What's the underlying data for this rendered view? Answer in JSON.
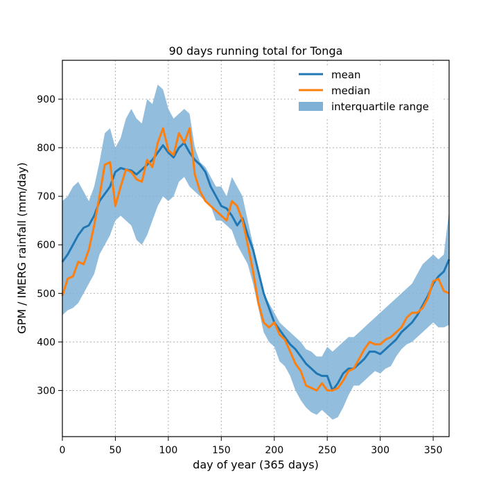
{
  "chart_data": {
    "type": "line",
    "title": "90 days running total for Tonga",
    "xlabel": "day of year (365 days)",
    "ylabel": "GPM / IMERG rainfall (mm/day)",
    "xlim": [
      0,
      365
    ],
    "ylim": [
      205,
      980
    ],
    "xticks": [
      0,
      50,
      100,
      150,
      200,
      250,
      300,
      350
    ],
    "yticks": [
      300,
      400,
      500,
      600,
      700,
      800,
      900
    ],
    "grid": true,
    "legend_position": "top-right",
    "colors": {
      "mean": "#1f77b4",
      "median": "#ff7f0e",
      "iqr": "#7fb1d6"
    },
    "series": [
      {
        "name": "mean",
        "x": [
          0,
          5,
          10,
          15,
          20,
          25,
          30,
          35,
          40,
          45,
          50,
          55,
          60,
          65,
          70,
          75,
          80,
          85,
          90,
          95,
          100,
          105,
          110,
          115,
          120,
          125,
          130,
          135,
          140,
          145,
          150,
          155,
          160,
          165,
          170,
          175,
          180,
          185,
          190,
          195,
          200,
          205,
          210,
          215,
          220,
          225,
          230,
          235,
          240,
          245,
          250,
          255,
          260,
          265,
          270,
          275,
          280,
          285,
          290,
          295,
          300,
          305,
          310,
          315,
          320,
          325,
          330,
          335,
          340,
          345,
          350,
          355,
          360,
          365
        ],
        "values": [
          565,
          580,
          600,
          620,
          635,
          640,
          660,
          690,
          705,
          720,
          750,
          758,
          755,
          753,
          745,
          755,
          765,
          775,
          790,
          805,
          790,
          780,
          800,
          810,
          790,
          775,
          765,
          750,
          720,
          700,
          680,
          675,
          660,
          640,
          655,
          620,
          590,
          545,
          500,
          470,
          440,
          425,
          410,
          395,
          385,
          370,
          355,
          345,
          335,
          330,
          330,
          300,
          315,
          335,
          345,
          345,
          355,
          365,
          380,
          380,
          375,
          385,
          395,
          405,
          420,
          430,
          440,
          455,
          475,
          495,
          520,
          535,
          545,
          570
        ]
      },
      {
        "name": "median",
        "x": [
          0,
          5,
          10,
          15,
          20,
          25,
          30,
          35,
          40,
          45,
          50,
          55,
          60,
          65,
          70,
          75,
          80,
          85,
          90,
          95,
          100,
          105,
          110,
          115,
          120,
          125,
          130,
          135,
          140,
          145,
          150,
          155,
          160,
          165,
          170,
          175,
          180,
          185,
          190,
          195,
          200,
          205,
          210,
          215,
          220,
          225,
          230,
          235,
          240,
          245,
          250,
          255,
          260,
          265,
          270,
          275,
          280,
          285,
          290,
          295,
          300,
          305,
          310,
          315,
          320,
          325,
          330,
          335,
          340,
          345,
          350,
          355,
          360,
          365
        ],
        "values": [
          495,
          530,
          535,
          565,
          560,
          590,
          640,
          700,
          765,
          770,
          680,
          720,
          755,
          750,
          735,
          730,
          775,
          760,
          810,
          840,
          795,
          785,
          830,
          810,
          840,
          745,
          710,
          690,
          680,
          670,
          660,
          650,
          690,
          680,
          650,
          600,
          545,
          480,
          440,
          430,
          440,
          415,
          405,
          380,
          355,
          340,
          310,
          305,
          300,
          315,
          300,
          300,
          305,
          320,
          340,
          345,
          365,
          385,
          400,
          395,
          395,
          405,
          410,
          420,
          430,
          450,
          460,
          460,
          470,
          490,
          525,
          530,
          505,
          500
        ]
      },
      {
        "name": "interquartile range",
        "x": [
          0,
          5,
          10,
          15,
          20,
          25,
          30,
          35,
          40,
          45,
          50,
          55,
          60,
          65,
          70,
          75,
          80,
          85,
          90,
          95,
          100,
          105,
          110,
          115,
          120,
          125,
          130,
          135,
          140,
          145,
          150,
          155,
          160,
          165,
          170,
          175,
          180,
          185,
          190,
          195,
          200,
          205,
          210,
          215,
          220,
          225,
          230,
          235,
          240,
          245,
          250,
          255,
          260,
          265,
          270,
          275,
          280,
          285,
          290,
          295,
          300,
          305,
          310,
          315,
          320,
          325,
          330,
          335,
          340,
          345,
          350,
          355,
          360,
          365
        ],
        "low": [
          455,
          465,
          470,
          480,
          500,
          520,
          540,
          580,
          600,
          620,
          650,
          660,
          650,
          640,
          610,
          600,
          620,
          650,
          680,
          700,
          690,
          700,
          730,
          740,
          720,
          710,
          700,
          690,
          680,
          650,
          650,
          640,
          630,
          600,
          580,
          560,
          520,
          470,
          420,
          400,
          390,
          360,
          350,
          330,
          300,
          280,
          265,
          255,
          250,
          260,
          250,
          240,
          245,
          265,
          290,
          310,
          310,
          320,
          330,
          340,
          335,
          345,
          350,
          370,
          385,
          395,
          400,
          410,
          420,
          430,
          440,
          430,
          430,
          435
        ],
        "high": [
          690,
          700,
          720,
          730,
          710,
          690,
          720,
          770,
          830,
          840,
          800,
          820,
          860,
          880,
          860,
          850,
          900,
          890,
          930,
          920,
          880,
          860,
          870,
          880,
          870,
          800,
          770,
          760,
          740,
          720,
          720,
          700,
          740,
          720,
          700,
          650,
          600,
          540,
          500,
          480,
          460,
          440,
          430,
          420,
          410,
          400,
          385,
          380,
          370,
          370,
          390,
          380,
          390,
          400,
          410,
          410,
          420,
          430,
          440,
          450,
          460,
          470,
          480,
          490,
          500,
          510,
          520,
          540,
          560,
          570,
          580,
          570,
          580,
          670
        ]
      }
    ]
  }
}
